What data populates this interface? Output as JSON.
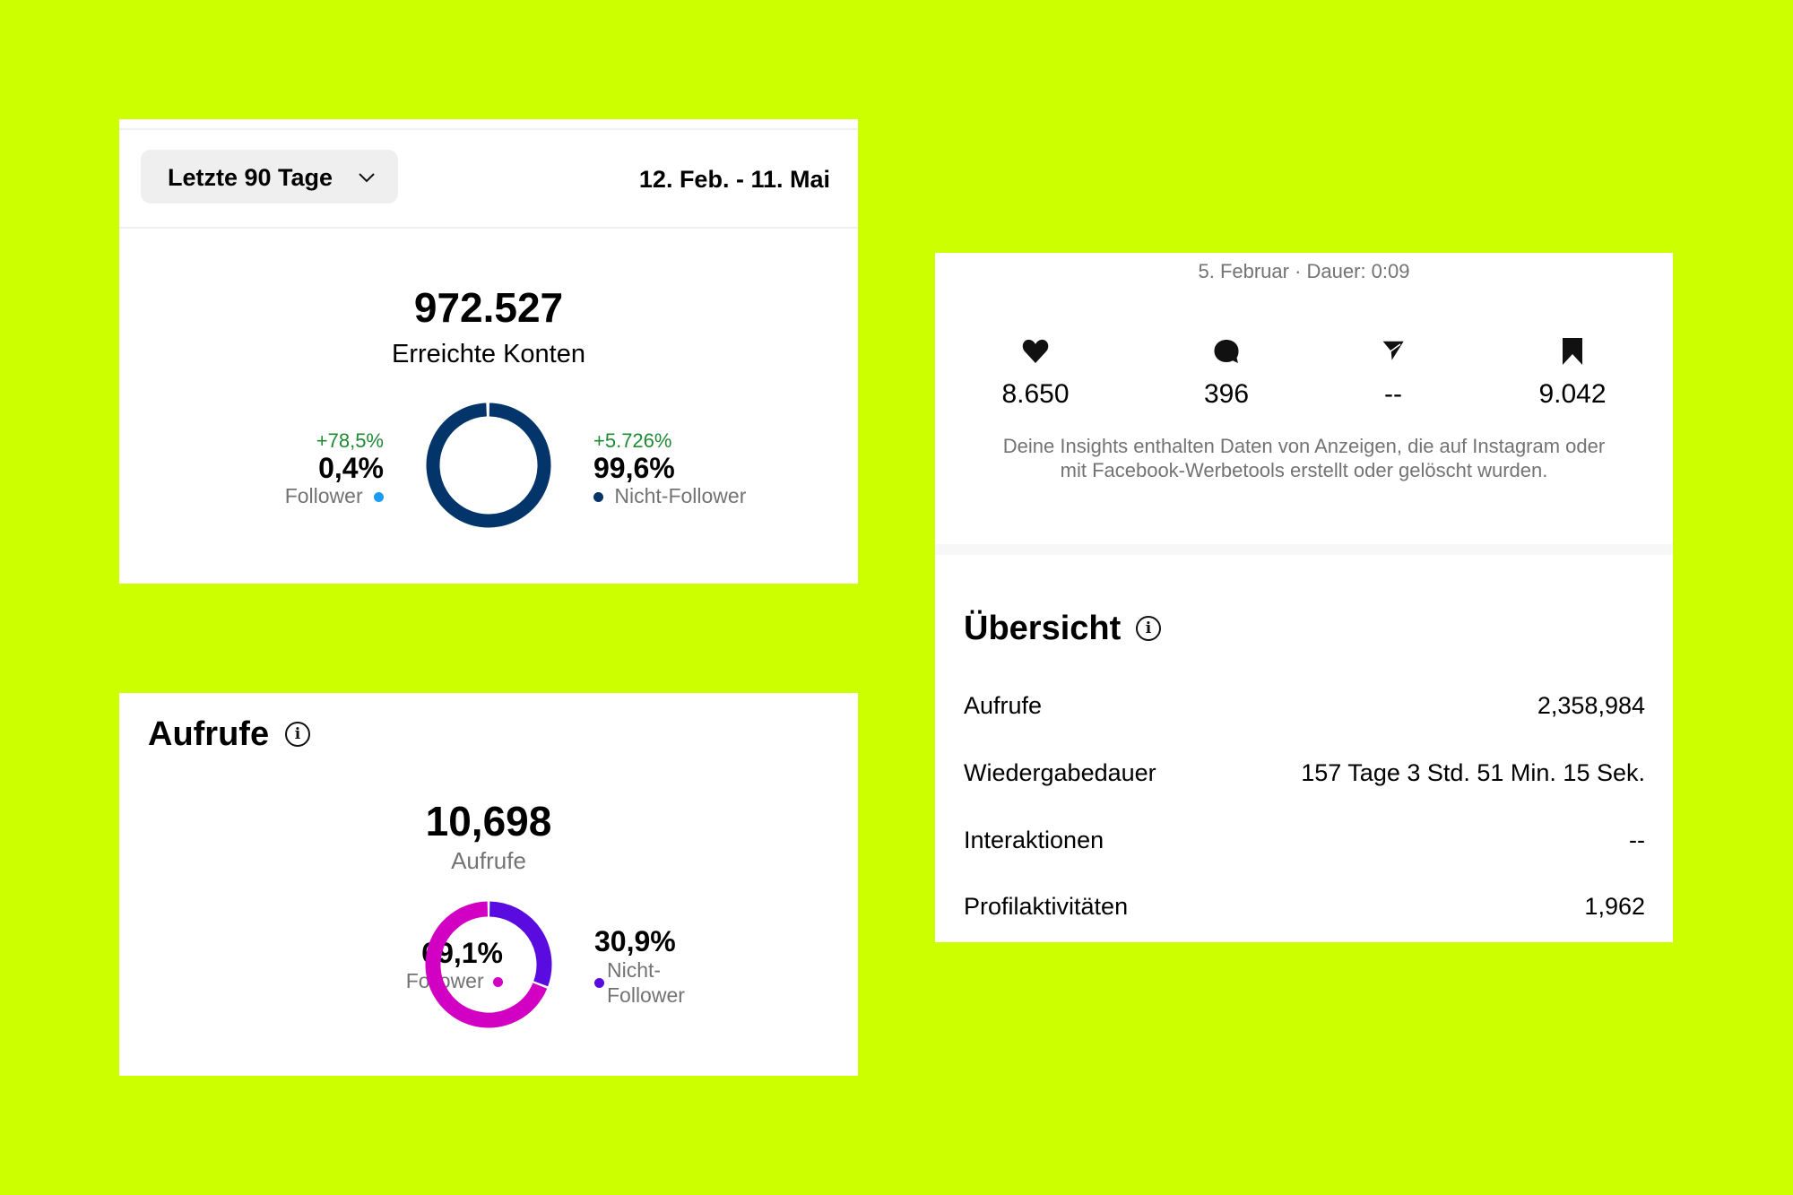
{
  "colors": {
    "background": "#ccff00",
    "navy": "#03356a",
    "follower_blue": "#1a9cf5",
    "magenta": "#d100c2",
    "purple": "#5a0be0",
    "positive_green": "#1f8a34"
  },
  "reach_card": {
    "period_dropdown": {
      "label": "Letzte 90 Tage",
      "icon": "chevron-down-icon"
    },
    "date_range": "12. Feb. - 11. Mai",
    "total": "972.527",
    "total_label": "Erreichte Konten",
    "follower": {
      "change": "+78,5%",
      "share": "0,4%",
      "label": "Follower"
    },
    "non_follower": {
      "change": "+5.726%",
      "share": "99,6%",
      "label": "Nicht-Follower"
    },
    "donut": {
      "follower_pct": 0.4,
      "non_follower_pct": 99.6
    }
  },
  "views_card": {
    "title": "Aufrufe",
    "info_icon": "info-icon",
    "total": "10,698",
    "total_label": "Aufrufe",
    "follower": {
      "share": "69,1%",
      "label": "Follower"
    },
    "non_follower": {
      "share": "30,9%",
      "label_line1": "Nicht-",
      "label_line2": "Follower"
    },
    "donut": {
      "follower_pct": 69.1,
      "non_follower_pct": 30.9
    }
  },
  "post_card": {
    "meta": "5. Februar · Dauer: 0:09",
    "stats": [
      {
        "icon": "heart-icon",
        "value": "8.650"
      },
      {
        "icon": "comment-icon",
        "value": "396"
      },
      {
        "icon": "share-icon",
        "value": "--"
      },
      {
        "icon": "bookmark-icon",
        "value": "9.042"
      }
    ],
    "note_line1": "Deine Insights enthalten Daten von Anzeigen, die auf Instagram oder",
    "note_line2": "mit Facebook-Werbetools erstellt oder gelöscht wurden.",
    "overview": {
      "title": "Übersicht",
      "rows": [
        {
          "label": "Aufrufe",
          "value": "2,358,984"
        },
        {
          "label": "Wiedergabedauer",
          "value": "157 Tage 3 Std. 51 Min. 15 Sek."
        },
        {
          "label": "Interaktionen",
          "value": "--"
        },
        {
          "label": "Profilaktivitäten",
          "value": "1,962"
        }
      ]
    }
  }
}
